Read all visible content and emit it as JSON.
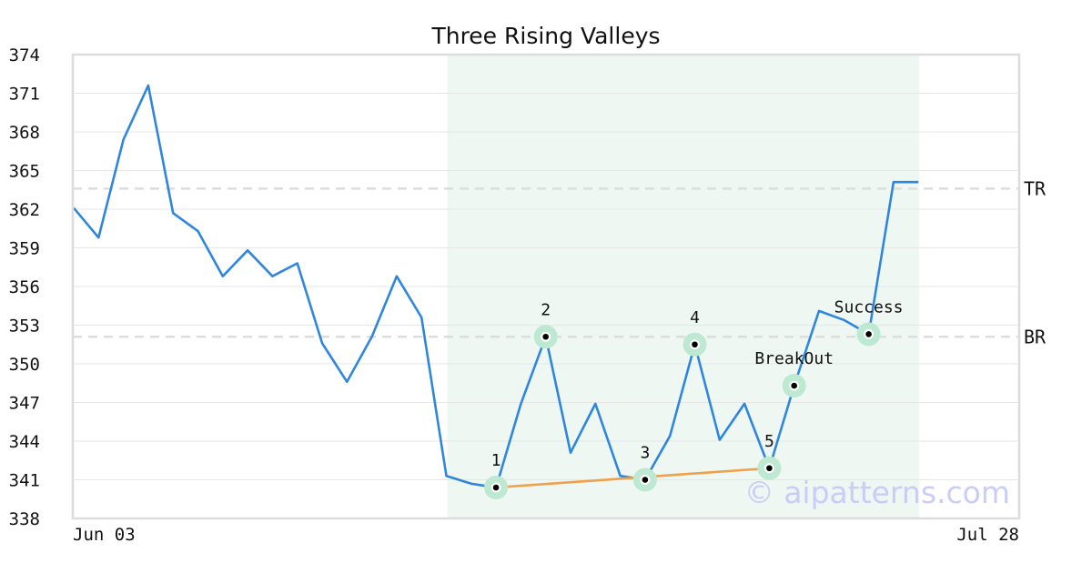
{
  "chart_data": {
    "type": "line",
    "title": "Three Rising Valleys",
    "xlabel": "",
    "ylabel": "",
    "ylim": [
      338,
      374
    ],
    "yticks": [
      338,
      341,
      344,
      347,
      350,
      353,
      356,
      359,
      362,
      365,
      368,
      371,
      374
    ],
    "xtick_labels": [
      "Jun 03",
      "Jul 28"
    ],
    "grid": true,
    "series": [
      {
        "color": "#2e86de",
        "values": [
          362.1,
          359.8,
          367.4,
          371.6,
          361.7,
          360.3,
          356.8,
          358.8,
          356.8,
          357.8,
          351.6,
          348.6,
          352.1,
          356.8,
          353.6,
          341.3,
          340.7,
          340.4,
          346.9,
          352.1,
          343.1,
          346.9,
          341.3,
          341.0,
          344.4,
          351.5,
          344.1,
          346.9,
          341.9,
          348.3,
          354.1,
          353.4,
          352.3,
          364.1,
          364.1
        ]
      }
    ],
    "shaded_region": {
      "start_index": 15,
      "end_index": 34,
      "color": "#eef7f1"
    },
    "reference_lines": [
      {
        "label": "TR",
        "value": 363.6
      },
      {
        "label": "BR",
        "value": 352.1
      }
    ],
    "valley_line": {
      "color": "#f0a04b",
      "points": [
        {
          "index": 17,
          "value": 340.4
        },
        {
          "index": 28,
          "value": 341.9
        }
      ]
    },
    "markers": [
      {
        "label": "1",
        "index": 17,
        "value": 340.4,
        "label_pos": "above"
      },
      {
        "label": "2",
        "index": 19,
        "value": 352.1,
        "label_pos": "above"
      },
      {
        "label": "3",
        "index": 23,
        "value": 341.0,
        "label_pos": "above"
      },
      {
        "label": "4",
        "index": 25,
        "value": 351.5,
        "label_pos": "above"
      },
      {
        "label": "5",
        "index": 28,
        "value": 341.9,
        "label_pos": "above"
      },
      {
        "label": "BreakOut",
        "index": 29,
        "value": 348.3,
        "label_pos": "above"
      },
      {
        "label": "Success",
        "index": 32,
        "value": 352.3,
        "label_pos": "above"
      }
    ],
    "watermark": "© aipatterns.com"
  }
}
